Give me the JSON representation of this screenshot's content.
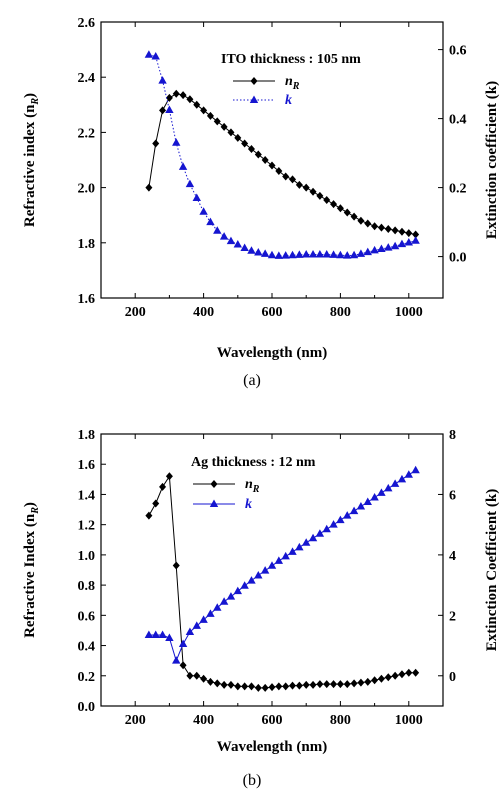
{
  "chart_data": [
    {
      "type": "line",
      "panel_label": "(a)",
      "annotation": "ITO thickness : 105 nm",
      "xlabel": "Wavelength (nm)",
      "ylabel": "Refractive index (n",
      "ylabel_sub": "R",
      "ylabel_tail": ")",
      "y2label": "Extinction coefficient (k)",
      "xlim": [
        100,
        1100
      ],
      "ylim": [
        1.6,
        2.6
      ],
      "y2lim": [
        -0.12,
        0.68
      ],
      "xticks": [
        "200",
        "400",
        "600",
        "800",
        "1000"
      ],
      "yticks": [
        "1.6",
        "1.8",
        "2.0",
        "2.2",
        "2.4",
        "2.6"
      ],
      "y2ticks": [
        "0.0",
        "0.2",
        "0.4",
        "0.6"
      ],
      "legend_position": "top-right",
      "series": [
        {
          "name": "n",
          "name_sub": "R",
          "axis": "left",
          "color": "#000000",
          "marker": "diamond",
          "x": [
            240,
            260,
            280,
            300,
            320,
            340,
            360,
            380,
            400,
            420,
            440,
            460,
            480,
            500,
            520,
            540,
            560,
            580,
            600,
            620,
            640,
            660,
            680,
            700,
            720,
            740,
            760,
            780,
            800,
            820,
            840,
            860,
            880,
            900,
            920,
            940,
            960,
            980,
            1000,
            1020
          ],
          "y": [
            2.0,
            2.16,
            2.28,
            2.325,
            2.34,
            2.335,
            2.32,
            2.3,
            2.28,
            2.26,
            2.24,
            2.22,
            2.2,
            2.18,
            2.16,
            2.14,
            2.12,
            2.1,
            2.08,
            2.06,
            2.04,
            2.03,
            2.01,
            2.0,
            1.985,
            1.97,
            1.955,
            1.94,
            1.925,
            1.91,
            1.895,
            1.88,
            1.87,
            1.86,
            1.855,
            1.85,
            1.845,
            1.84,
            1.835,
            1.83
          ]
        },
        {
          "name": "k",
          "axis": "right",
          "color": "#1515d0",
          "marker": "triangle",
          "linestyle": "dotted",
          "x": [
            240,
            260,
            280,
            300,
            320,
            340,
            360,
            380,
            400,
            420,
            440,
            460,
            480,
            500,
            520,
            540,
            560,
            580,
            600,
            620,
            640,
            660,
            680,
            700,
            720,
            740,
            760,
            780,
            800,
            820,
            840,
            860,
            880,
            900,
            920,
            940,
            960,
            980,
            1000,
            1020
          ],
          "y": [
            0.585,
            0.58,
            0.51,
            0.425,
            0.33,
            0.26,
            0.21,
            0.17,
            0.13,
            0.1,
            0.075,
            0.058,
            0.045,
            0.035,
            0.025,
            0.017,
            0.012,
            0.008,
            0.004,
            0.002,
            0.003,
            0.004,
            0.005,
            0.006,
            0.006,
            0.006,
            0.006,
            0.005,
            0.004,
            0.003,
            0.004,
            0.008,
            0.013,
            0.018,
            0.022,
            0.026,
            0.03,
            0.036,
            0.041,
            0.046
          ]
        }
      ]
    },
    {
      "type": "line",
      "panel_label": "(b)",
      "annotation": "Ag thickness : 12 nm",
      "xlabel": "Wavelength (nm)",
      "ylabel": "Refractive Index (n",
      "ylabel_sub": "R",
      "ylabel_tail": ")",
      "y2label": "Extinction Coefficient (k)",
      "xlim": [
        100,
        1100
      ],
      "ylim": [
        0.0,
        1.8
      ],
      "y2lim": [
        -1.0,
        8.0
      ],
      "xticks": [
        "200",
        "400",
        "600",
        "800",
        "1000"
      ],
      "yticks": [
        "0.0",
        "0.2",
        "0.4",
        "0.6",
        "0.8",
        "1.0",
        "1.2",
        "1.4",
        "1.6",
        "1.8"
      ],
      "y2ticks": [
        "0",
        "2",
        "4",
        "6",
        "8"
      ],
      "legend_position": "top-left",
      "series": [
        {
          "name": "n",
          "name_sub": "R",
          "axis": "left",
          "color": "#000000",
          "marker": "diamond",
          "x": [
            240,
            260,
            280,
            300,
            320,
            340,
            360,
            380,
            400,
            420,
            440,
            460,
            480,
            500,
            520,
            540,
            560,
            580,
            600,
            620,
            640,
            660,
            680,
            700,
            720,
            740,
            760,
            780,
            800,
            820,
            840,
            860,
            880,
            900,
            920,
            940,
            960,
            980,
            1000,
            1020
          ],
          "y": [
            1.26,
            1.34,
            1.45,
            1.52,
            0.93,
            0.27,
            0.2,
            0.2,
            0.18,
            0.16,
            0.15,
            0.14,
            0.14,
            0.13,
            0.13,
            0.13,
            0.12,
            0.12,
            0.125,
            0.13,
            0.13,
            0.135,
            0.135,
            0.14,
            0.14,
            0.145,
            0.145,
            0.145,
            0.145,
            0.145,
            0.15,
            0.155,
            0.16,
            0.17,
            0.18,
            0.19,
            0.2,
            0.21,
            0.22,
            0.22
          ]
        },
        {
          "name": "k",
          "axis": "right",
          "color": "#1515d0",
          "marker": "triangle",
          "linestyle": "solid",
          "x": [
            240,
            260,
            280,
            300,
            320,
            340,
            360,
            380,
            400,
            420,
            440,
            460,
            480,
            500,
            520,
            540,
            560,
            580,
            600,
            620,
            640,
            660,
            680,
            700,
            720,
            740,
            760,
            780,
            800,
            820,
            840,
            860,
            880,
            900,
            920,
            940,
            960,
            980,
            1000,
            1020
          ],
          "y": [
            1.35,
            1.35,
            1.35,
            1.25,
            0.5,
            1.05,
            1.45,
            1.65,
            1.85,
            2.05,
            2.25,
            2.45,
            2.62,
            2.8,
            2.98,
            3.15,
            3.32,
            3.48,
            3.64,
            3.8,
            3.95,
            4.1,
            4.25,
            4.4,
            4.55,
            4.7,
            4.85,
            5.0,
            5.15,
            5.3,
            5.45,
            5.6,
            5.75,
            5.9,
            6.05,
            6.2,
            6.35,
            6.5,
            6.65,
            6.8
          ]
        }
      ]
    }
  ]
}
